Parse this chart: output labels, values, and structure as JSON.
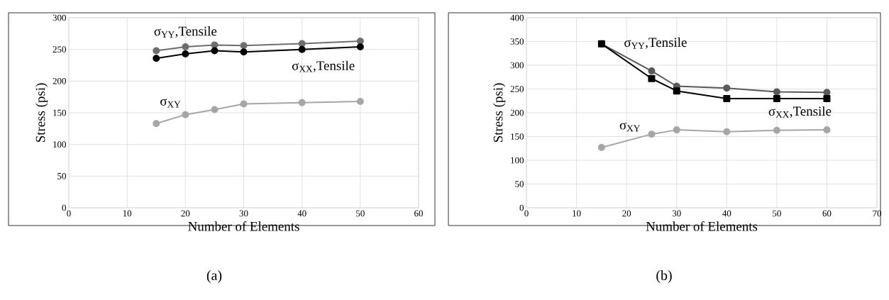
{
  "chart_data": [
    {
      "type": "line",
      "xlabel": "Number of Elements",
      "ylabel": "Stress (psi)",
      "xlim": [
        0,
        60
      ],
      "xticks": [
        0,
        10,
        20,
        30,
        40,
        50,
        60
      ],
      "ylim": [
        0,
        300
      ],
      "yticks": [
        0,
        50,
        100,
        150,
        200,
        250,
        300
      ],
      "grid": true,
      "line_style": "solid",
      "x": [
        15,
        20,
        25,
        30,
        40,
        50
      ],
      "series": [
        {
          "name": "σ$_{YY}$,Tensile",
          "color": "#6e6e6e",
          "marker": "circle",
          "values": [
            248,
            254,
            257,
            256,
            259,
            263
          ]
        },
        {
          "name": "σ$_{XX}$,Tensile",
          "color": "#000000",
          "marker": "circle",
          "values": [
            236,
            243,
            248,
            246,
            250,
            254
          ]
        },
        {
          "name": "σ$_{XY}$",
          "color": "#a6a6a6",
          "marker": "circle",
          "values": [
            133,
            147,
            155,
            164,
            166,
            168
          ]
        }
      ],
      "annotations": [
        "(a)"
      ]
    },
    {
      "type": "line",
      "xlabel": "Number of Elements",
      "ylabel": "Stress (psi)",
      "xlim": [
        0,
        70
      ],
      "xticks": [
        0,
        10,
        20,
        30,
        40,
        50,
        60,
        70
      ],
      "ylim": [
        0,
        400
      ],
      "yticks": [
        0,
        50,
        100,
        150,
        200,
        250,
        300,
        350,
        400
      ],
      "grid": true,
      "line_style": "solid",
      "x": [
        15,
        25,
        30,
        40,
        50,
        60
      ],
      "series": [
        {
          "name": "σ$_{YY}$,Tensile",
          "color": "#595959",
          "marker": "circle",
          "values": [
            345,
            288,
            256,
            252,
            244,
            243
          ]
        },
        {
          "name": "σ$_{XX}$,Tensile",
          "color": "#000000",
          "marker": "square",
          "values": [
            345,
            272,
            246,
            230,
            230,
            230
          ]
        },
        {
          "name": "σ$_{XY}$",
          "color": "#a6a6a6",
          "marker": "circle",
          "values": [
            127,
            155,
            164,
            160,
            163,
            164
          ]
        }
      ],
      "annotations": [
        "(b)"
      ]
    }
  ]
}
